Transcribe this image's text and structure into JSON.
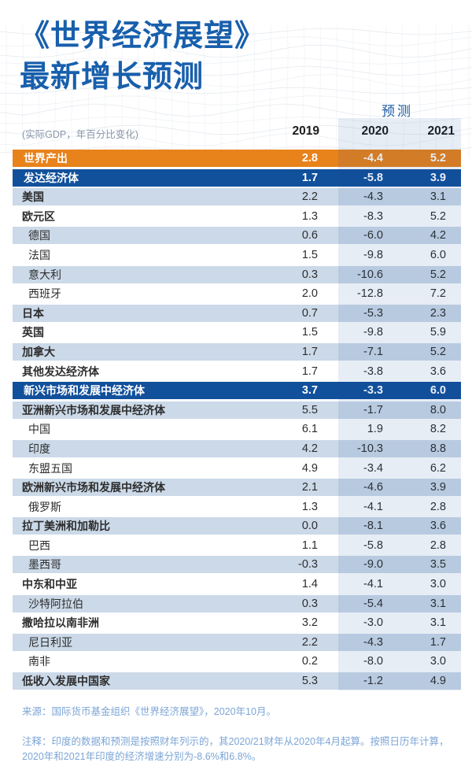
{
  "chart_data": {
    "type": "table",
    "title_line1": "《世界经济展望》",
    "title_line2": "最新增长预测",
    "subtitle": "(实际GDP，年百分比变化)",
    "forecast_label": "预测",
    "columns": [
      "2019",
      "2020",
      "2021"
    ],
    "forecast_columns": [
      "2020",
      "2021"
    ],
    "rows": [
      {
        "label": "世界产出",
        "level": "header-world",
        "values": [
          2.8,
          -4.4,
          5.2
        ]
      },
      {
        "label": "发达经济体",
        "level": "header-group",
        "values": [
          1.7,
          -5.8,
          3.9
        ]
      },
      {
        "label": "美国",
        "level": "l1",
        "values": [
          2.2,
          -4.3,
          3.1
        ]
      },
      {
        "label": "欧元区",
        "level": "l1",
        "values": [
          1.3,
          -8.3,
          5.2
        ]
      },
      {
        "label": "德国",
        "level": "l2",
        "values": [
          0.6,
          -6.0,
          4.2
        ]
      },
      {
        "label": "法国",
        "level": "l2",
        "values": [
          1.5,
          -9.8,
          6.0
        ]
      },
      {
        "label": "意大利",
        "level": "l2",
        "values": [
          0.3,
          -10.6,
          5.2
        ]
      },
      {
        "label": "西班牙",
        "level": "l2",
        "values": [
          2.0,
          -12.8,
          7.2
        ]
      },
      {
        "label": "日本",
        "level": "l1",
        "values": [
          0.7,
          -5.3,
          2.3
        ]
      },
      {
        "label": "英国",
        "level": "l1",
        "values": [
          1.5,
          -9.8,
          5.9
        ]
      },
      {
        "label": "加拿大",
        "level": "l1",
        "values": [
          1.7,
          -7.1,
          5.2
        ]
      },
      {
        "label": "其他发达经济体",
        "level": "l1",
        "values": [
          1.7,
          -3.8,
          3.6
        ]
      },
      {
        "label": "新兴市场和发展中经济体",
        "level": "header-group",
        "values": [
          3.7,
          -3.3,
          6.0
        ]
      },
      {
        "label": "亚洲新兴市场和发展中经济体",
        "level": "l1",
        "values": [
          5.5,
          -1.7,
          8.0
        ]
      },
      {
        "label": "中国",
        "level": "l2",
        "values": [
          6.1,
          1.9,
          8.2
        ]
      },
      {
        "label": "印度",
        "level": "l2",
        "values": [
          4.2,
          -10.3,
          8.8
        ]
      },
      {
        "label": "东盟五国",
        "level": "l2",
        "values": [
          4.9,
          -3.4,
          6.2
        ]
      },
      {
        "label": "欧洲新兴市场和发展中经济体",
        "level": "l1",
        "values": [
          2.1,
          -4.6,
          3.9
        ]
      },
      {
        "label": "俄罗斯",
        "level": "l2",
        "values": [
          1.3,
          -4.1,
          2.8
        ]
      },
      {
        "label": "拉丁美洲和加勒比",
        "level": "l1",
        "values": [
          0.0,
          -8.1,
          3.6
        ]
      },
      {
        "label": "巴西",
        "level": "l2",
        "values": [
          1.1,
          -5.8,
          2.8
        ]
      },
      {
        "label": "墨西哥",
        "level": "l2",
        "values": [
          -0.3,
          -9.0,
          3.5
        ]
      },
      {
        "label": "中东和中亚",
        "level": "l1",
        "values": [
          1.4,
          -4.1,
          3.0
        ]
      },
      {
        "label": "沙特阿拉伯",
        "level": "l2",
        "values": [
          0.3,
          -5.4,
          3.1
        ]
      },
      {
        "label": "撒哈拉以南非洲",
        "level": "l1",
        "values": [
          3.2,
          -3.0,
          3.1
        ]
      },
      {
        "label": "尼日利亚",
        "level": "l2",
        "values": [
          2.2,
          -4.3,
          1.7
        ]
      },
      {
        "label": "南非",
        "level": "l2",
        "values": [
          0.2,
          -8.0,
          3.0
        ]
      },
      {
        "label": "低收入发展中国家",
        "level": "l1",
        "values": [
          5.3,
          -1.2,
          4.9
        ]
      }
    ],
    "source": "来源：国际货币基金组织《世界经济展望》，2020年10月。",
    "note_line1": "注释：印度的数据和预测是按照财年列示的，其2020/21财年从2020年4月起算。按照日历年计算，",
    "note_line2": "2020年和2021年印度的经济增速分别为-8.6%和6.8%。",
    "colors": {
      "accent_orange": "#E8821B",
      "accent_blue": "#11509B",
      "row_light": "#CBD9E8",
      "band_tint": "rgba(17,80,155,0.10)",
      "title_blue": "#185FAC",
      "forecast_blue": "#1B5AA5",
      "footer_blue": "#7CA5D6"
    }
  }
}
